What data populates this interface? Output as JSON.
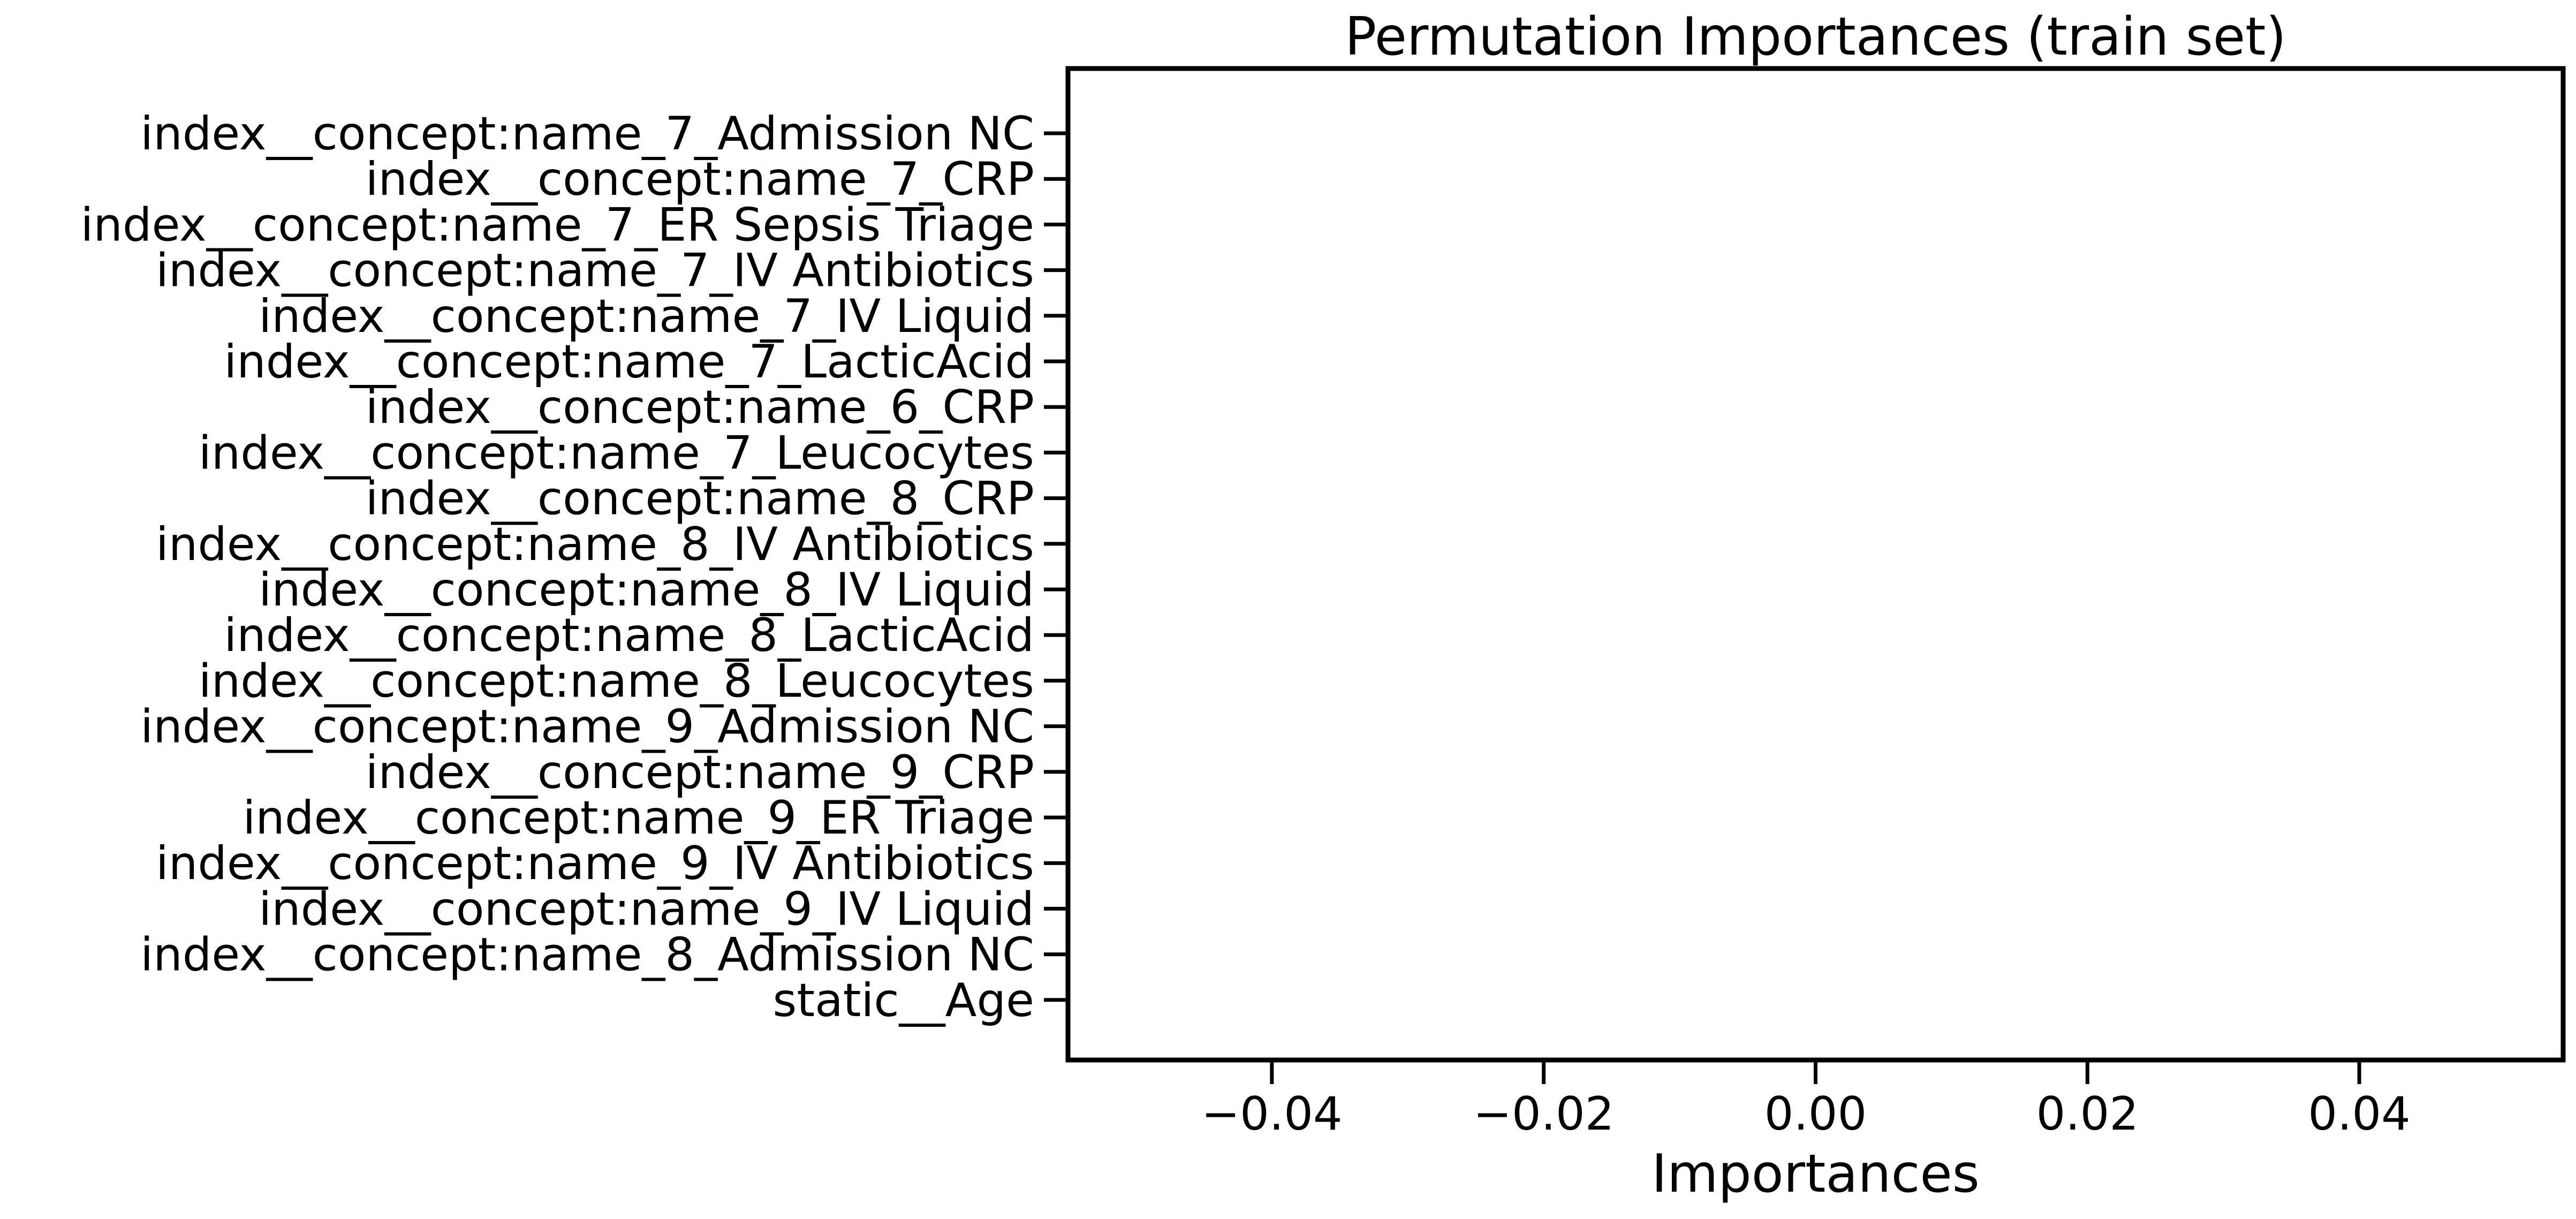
{
  "chart_data": {
    "type": "bar",
    "orientation": "horizontal",
    "title": "Permutation Importances (train set)",
    "xlabel": "Importances",
    "ylabel": "",
    "xlim": [
      -0.055,
      0.055
    ],
    "xticks": [
      -0.04,
      -0.02,
      0.0,
      0.02,
      0.04
    ],
    "xtick_labels": [
      "−0.04",
      "−0.02",
      "0.00",
      "0.02",
      "0.04"
    ],
    "grid": false,
    "categories": [
      "index__concept:name_7_Admission NC",
      "index__concept:name_7_CRP",
      "index__concept:name_7_ER Sepsis Triage",
      "index__concept:name_7_IV Antibiotics",
      "index__concept:name_7_IV Liquid",
      "index__concept:name_7_LacticAcid",
      "index__concept:name_6_CRP",
      "index__concept:name_7_Leucocytes",
      "index__concept:name_8_CRP",
      "index__concept:name_8_IV Antibiotics",
      "index__concept:name_8_IV Liquid",
      "index__concept:name_8_LacticAcid",
      "index__concept:name_8_Leucocytes",
      "index__concept:name_9_Admission NC",
      "index__concept:name_9_CRP",
      "index__concept:name_9_ER Triage",
      "index__concept:name_9_IV Antibiotics",
      "index__concept:name_9_IV Liquid",
      "index__concept:name_8_Admission NC",
      "static__Age"
    ],
    "values": [
      0,
      0,
      0,
      0,
      0,
      0,
      0,
      0,
      0,
      0,
      0,
      0,
      0,
      0,
      0,
      0,
      0,
      0,
      0,
      0
    ]
  }
}
